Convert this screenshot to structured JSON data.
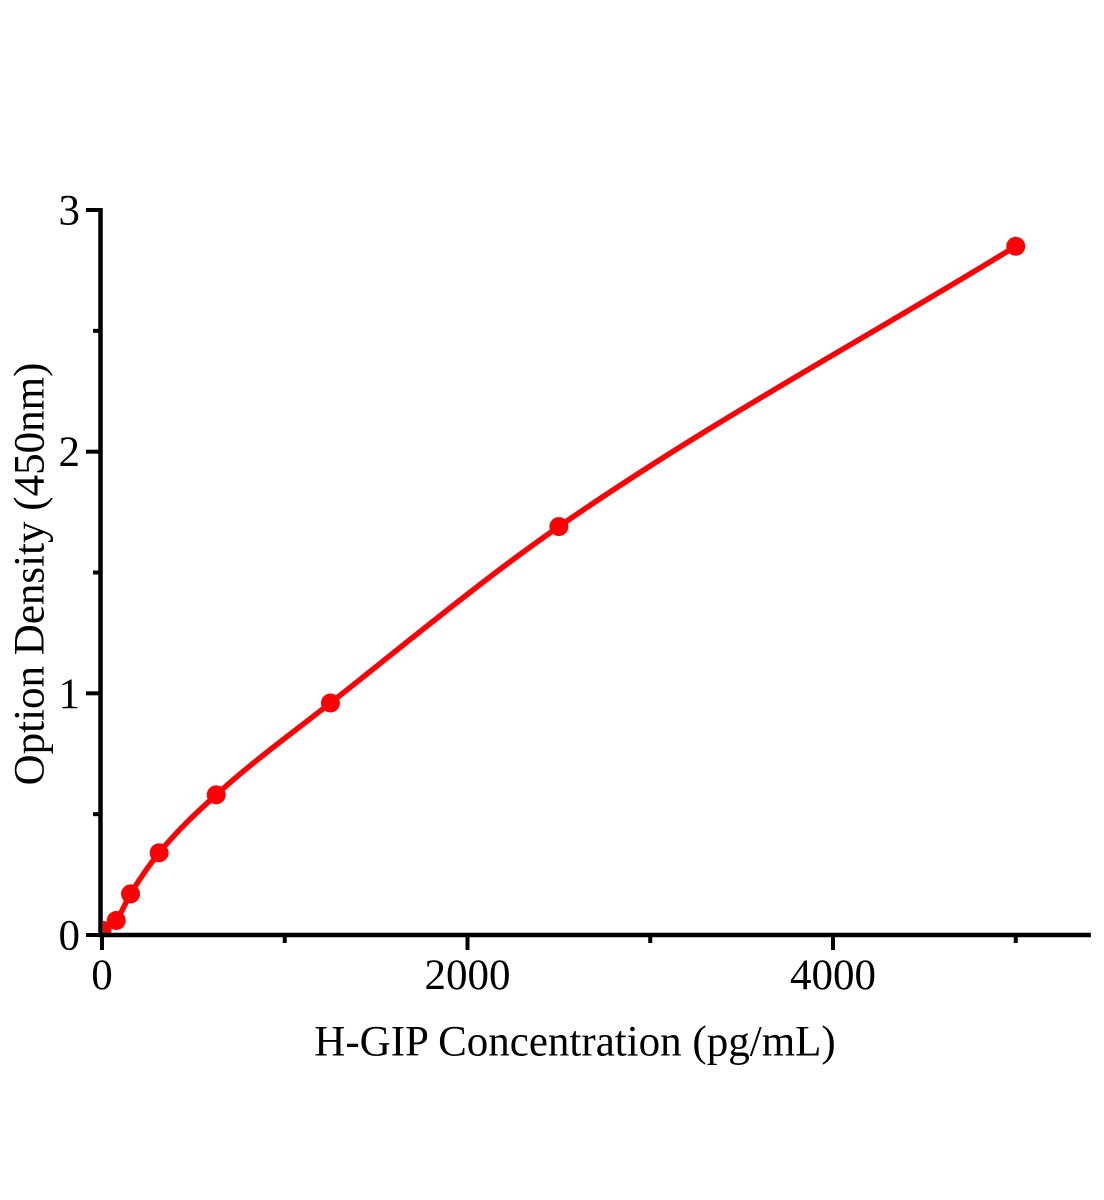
{
  "figure": {
    "background": "#ffffff",
    "kind": "ELISA standard curve plot"
  },
  "chart_data": {
    "type": "scatter",
    "title": "",
    "xlabel": "H-GIP Concentration (pg/mL)",
    "ylabel": "Option Density (450nm)",
    "points": [
      {
        "x": 0,
        "y": 0.02
      },
      {
        "x": 78,
        "y": 0.06
      },
      {
        "x": 156,
        "y": 0.17
      },
      {
        "x": 312.5,
        "y": 0.34
      },
      {
        "x": 625,
        "y": 0.58
      },
      {
        "x": 1250,
        "y": 0.96
      },
      {
        "x": 2500,
        "y": 1.69
      },
      {
        "x": 5000,
        "y": 2.85
      }
    ],
    "xlim": [
      0,
      5400
    ],
    "ylim": [
      0,
      3
    ],
    "x_major_ticks": [
      0,
      2000,
      4000
    ],
    "x_minor_ticks": [
      1000,
      3000,
      5000
    ],
    "y_major_ticks": [
      0,
      1,
      2,
      3
    ],
    "y_minor_ticks": [
      0.5,
      1.5,
      2.5
    ],
    "x_tick_labels": [
      "0",
      "2000",
      "4000"
    ],
    "y_tick_labels": [
      "0",
      "1",
      "2",
      "3"
    ],
    "grid": false,
    "legend": "none",
    "line_style": "smooth",
    "line_color": "#fa0307",
    "marker": "filled-circle",
    "marker_color": "#fa0307",
    "axis_color": "#000000"
  }
}
